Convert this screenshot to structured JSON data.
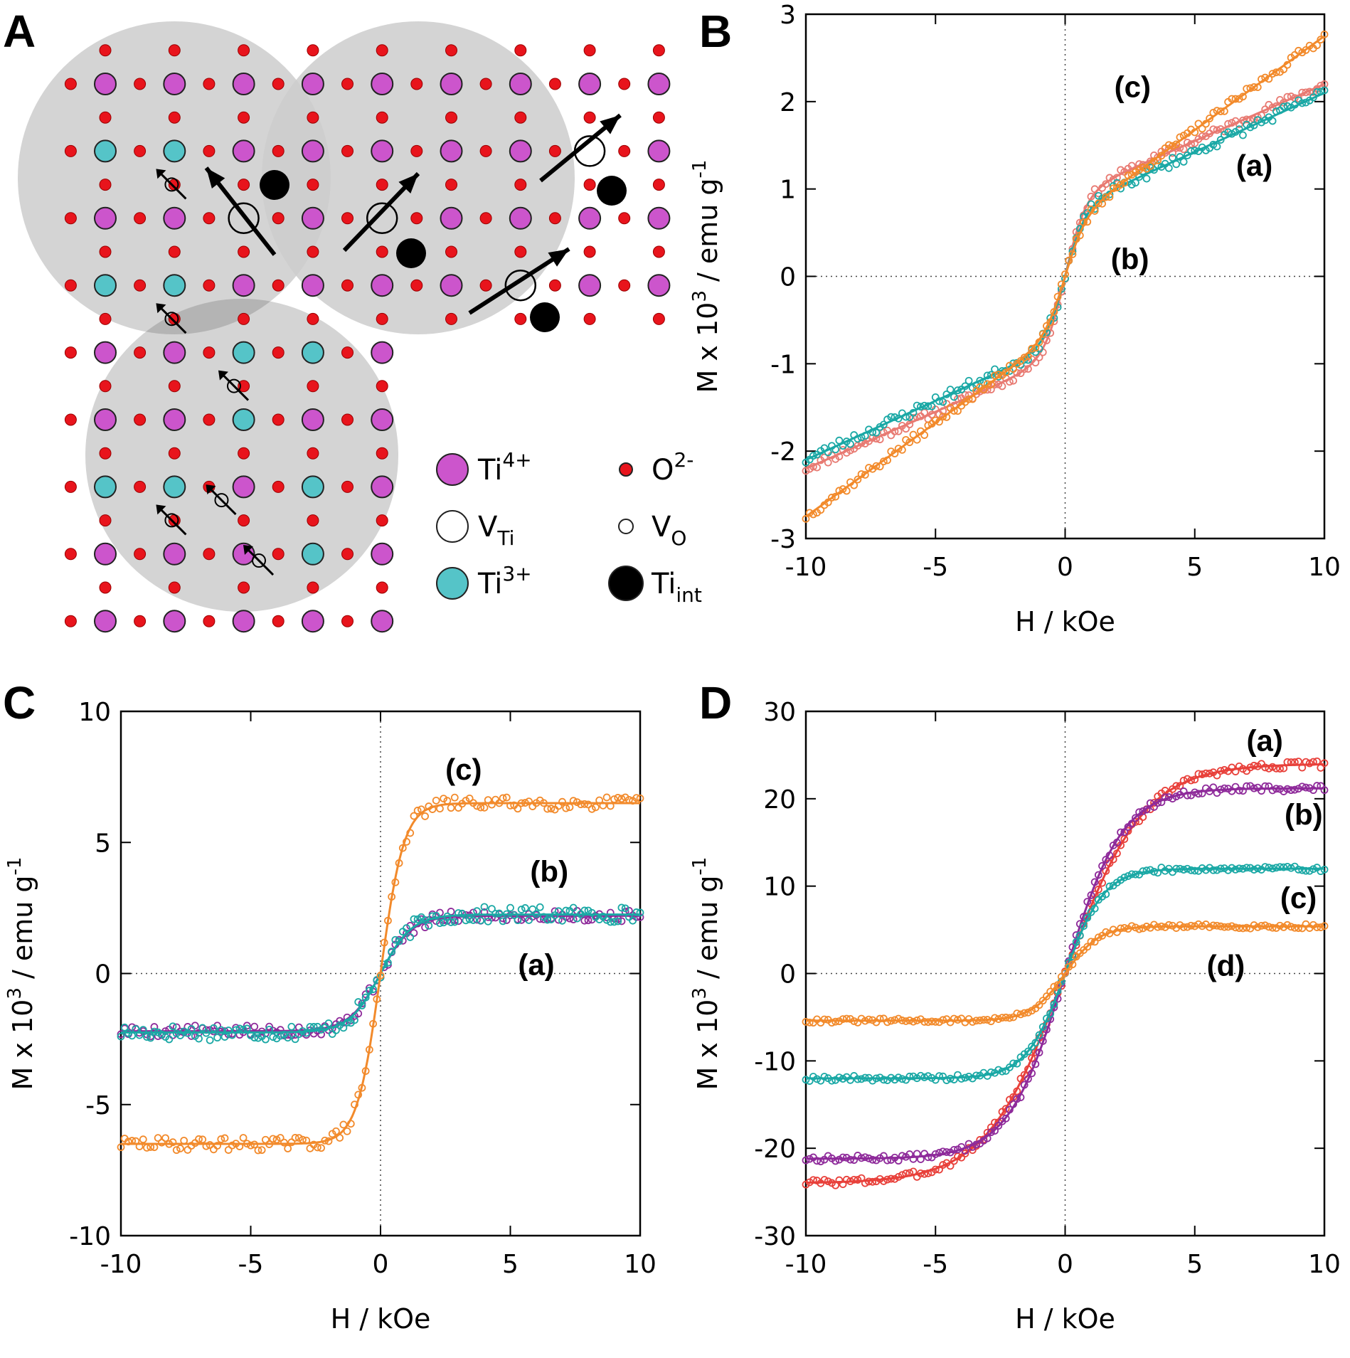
{
  "panels": {
    "A": {
      "letter": "A",
      "legend": [
        {
          "key": "ti4",
          "base": "Ti",
          "sup": "4+",
          "sub": "",
          "color": "#cc55cc"
        },
        {
          "key": "o2",
          "base": "O",
          "sup": "2-",
          "sub": "",
          "color": "#e8141c"
        },
        {
          "key": "vti",
          "base": "V",
          "sup": "",
          "sub": "Ti",
          "color": "#ffffff"
        },
        {
          "key": "vo",
          "base": "V",
          "sup": "",
          "sub": "O",
          "color": "#ffffff"
        },
        {
          "key": "ti3",
          "base": "Ti",
          "sup": "3+",
          "sub": "",
          "color": "#55c4c8"
        },
        {
          "key": "tiint",
          "base": "Ti",
          "sup": "",
          "sub": "int",
          "color": "#000000"
        }
      ]
    },
    "B": {
      "letter": "B"
    },
    "C": {
      "letter": "C"
    },
    "D": {
      "letter": "D"
    }
  },
  "chart_data": [
    {
      "panel": "B",
      "type": "scatter",
      "title": "",
      "xlabel": "H / kOe",
      "ylabel": "M x 10³ / emu g⁻¹",
      "ylabel_parts": {
        "main": "M x 10",
        "exp1": "3",
        "mid": " / emu g",
        "exp2": "-1"
      },
      "xlim": [
        -10,
        10
      ],
      "ylim": [
        -3,
        3
      ],
      "xticks": [
        -10,
        -5,
        0,
        5,
        10
      ],
      "yticks": [
        -3,
        -2,
        -1,
        0,
        1,
        2,
        3
      ],
      "series": [
        {
          "name": "(a)",
          "color": "#e87a72",
          "ms": 0.9,
          "chi": 0.13,
          "h0": 0.8,
          "noise": 0.05,
          "seed": 11,
          "label_at": [
            7.3,
            1.15
          ]
        },
        {
          "name": "(b)",
          "color": "#1aa8a5",
          "ms": 0.75,
          "chi": 0.135,
          "h0": 0.8,
          "noise": 0.06,
          "seed": 23,
          "label_at": [
            2.5,
            0.08
          ]
        },
        {
          "name": "(c)",
          "color": "#f28a2b",
          "ms": 0.6,
          "chi": 0.215,
          "h0": 0.8,
          "noise": 0.05,
          "seed": 37,
          "label_at": [
            2.6,
            2.05
          ]
        }
      ]
    },
    {
      "panel": "C",
      "type": "scatter",
      "title": "",
      "xlabel": "H / kOe",
      "ylabel": "M x 10³ / emu g⁻¹",
      "ylabel_parts": {
        "main": "M x 10",
        "exp1": "3",
        "mid": " / emu g",
        "exp2": "-1"
      },
      "xlim": [
        -10,
        10
      ],
      "ylim": [
        -10,
        10
      ],
      "xticks": [
        -10,
        -5,
        0,
        5,
        10
      ],
      "yticks": [
        -10,
        -5,
        0,
        5,
        10
      ],
      "series": [
        {
          "name": "(a)",
          "color": "#8e2a9a",
          "ms": 2.2,
          "chi": 0.0,
          "h0": 1.2,
          "noise": 0.22,
          "seed": 5,
          "label_at": [
            6.0,
            -0.05
          ]
        },
        {
          "name": "(b)",
          "color": "#1aa8a5",
          "ms": 2.25,
          "chi": 0.0,
          "h0": 1.2,
          "noise": 0.3,
          "seed": 17,
          "label_at": [
            6.5,
            3.5
          ]
        },
        {
          "name": "(c)",
          "color": "#f28a2b",
          "ms": 6.5,
          "chi": 0.0,
          "h0": 0.9,
          "noise": 0.25,
          "seed": 29,
          "label_at": [
            3.2,
            7.4
          ]
        }
      ]
    },
    {
      "panel": "D",
      "type": "scatter",
      "title": "",
      "xlabel": "H / kOe",
      "ylabel": "M x 10³ / emu g⁻¹",
      "ylabel_parts": {
        "main": "M x 10",
        "exp1": "3",
        "mid": " / emu g",
        "exp2": "-1"
      },
      "xlim": [
        -10,
        10
      ],
      "ylim": [
        -30,
        30
      ],
      "xticks": [
        -10,
        -5,
        0,
        5,
        10
      ],
      "yticks": [
        -30,
        -20,
        -10,
        0,
        10,
        20,
        30
      ],
      "series": [
        {
          "name": "(a)",
          "color": "#e8403a",
          "ms": 24.0,
          "chi": 0.0,
          "h0": 3.0,
          "noise": 0.4,
          "seed": 3,
          "label_at": [
            7.7,
            25.5
          ]
        },
        {
          "name": "(b)",
          "color": "#8e2a9a",
          "ms": 21.2,
          "chi": 0.0,
          "h0": 2.2,
          "noise": 0.35,
          "seed": 13,
          "label_at": [
            9.2,
            17.0
          ]
        },
        {
          "name": "(c)",
          "color": "#1aa8a5",
          "ms": 12.0,
          "chi": 0.0,
          "h0": 1.5,
          "noise": 0.3,
          "seed": 19,
          "label_at": [
            9.0,
            7.5
          ]
        },
        {
          "name": "(d)",
          "color": "#f28a2b",
          "ms": 5.4,
          "chi": 0.0,
          "h0": 1.3,
          "noise": 0.25,
          "seed": 31,
          "label_at": [
            6.2,
            -0.3
          ]
        }
      ]
    }
  ]
}
